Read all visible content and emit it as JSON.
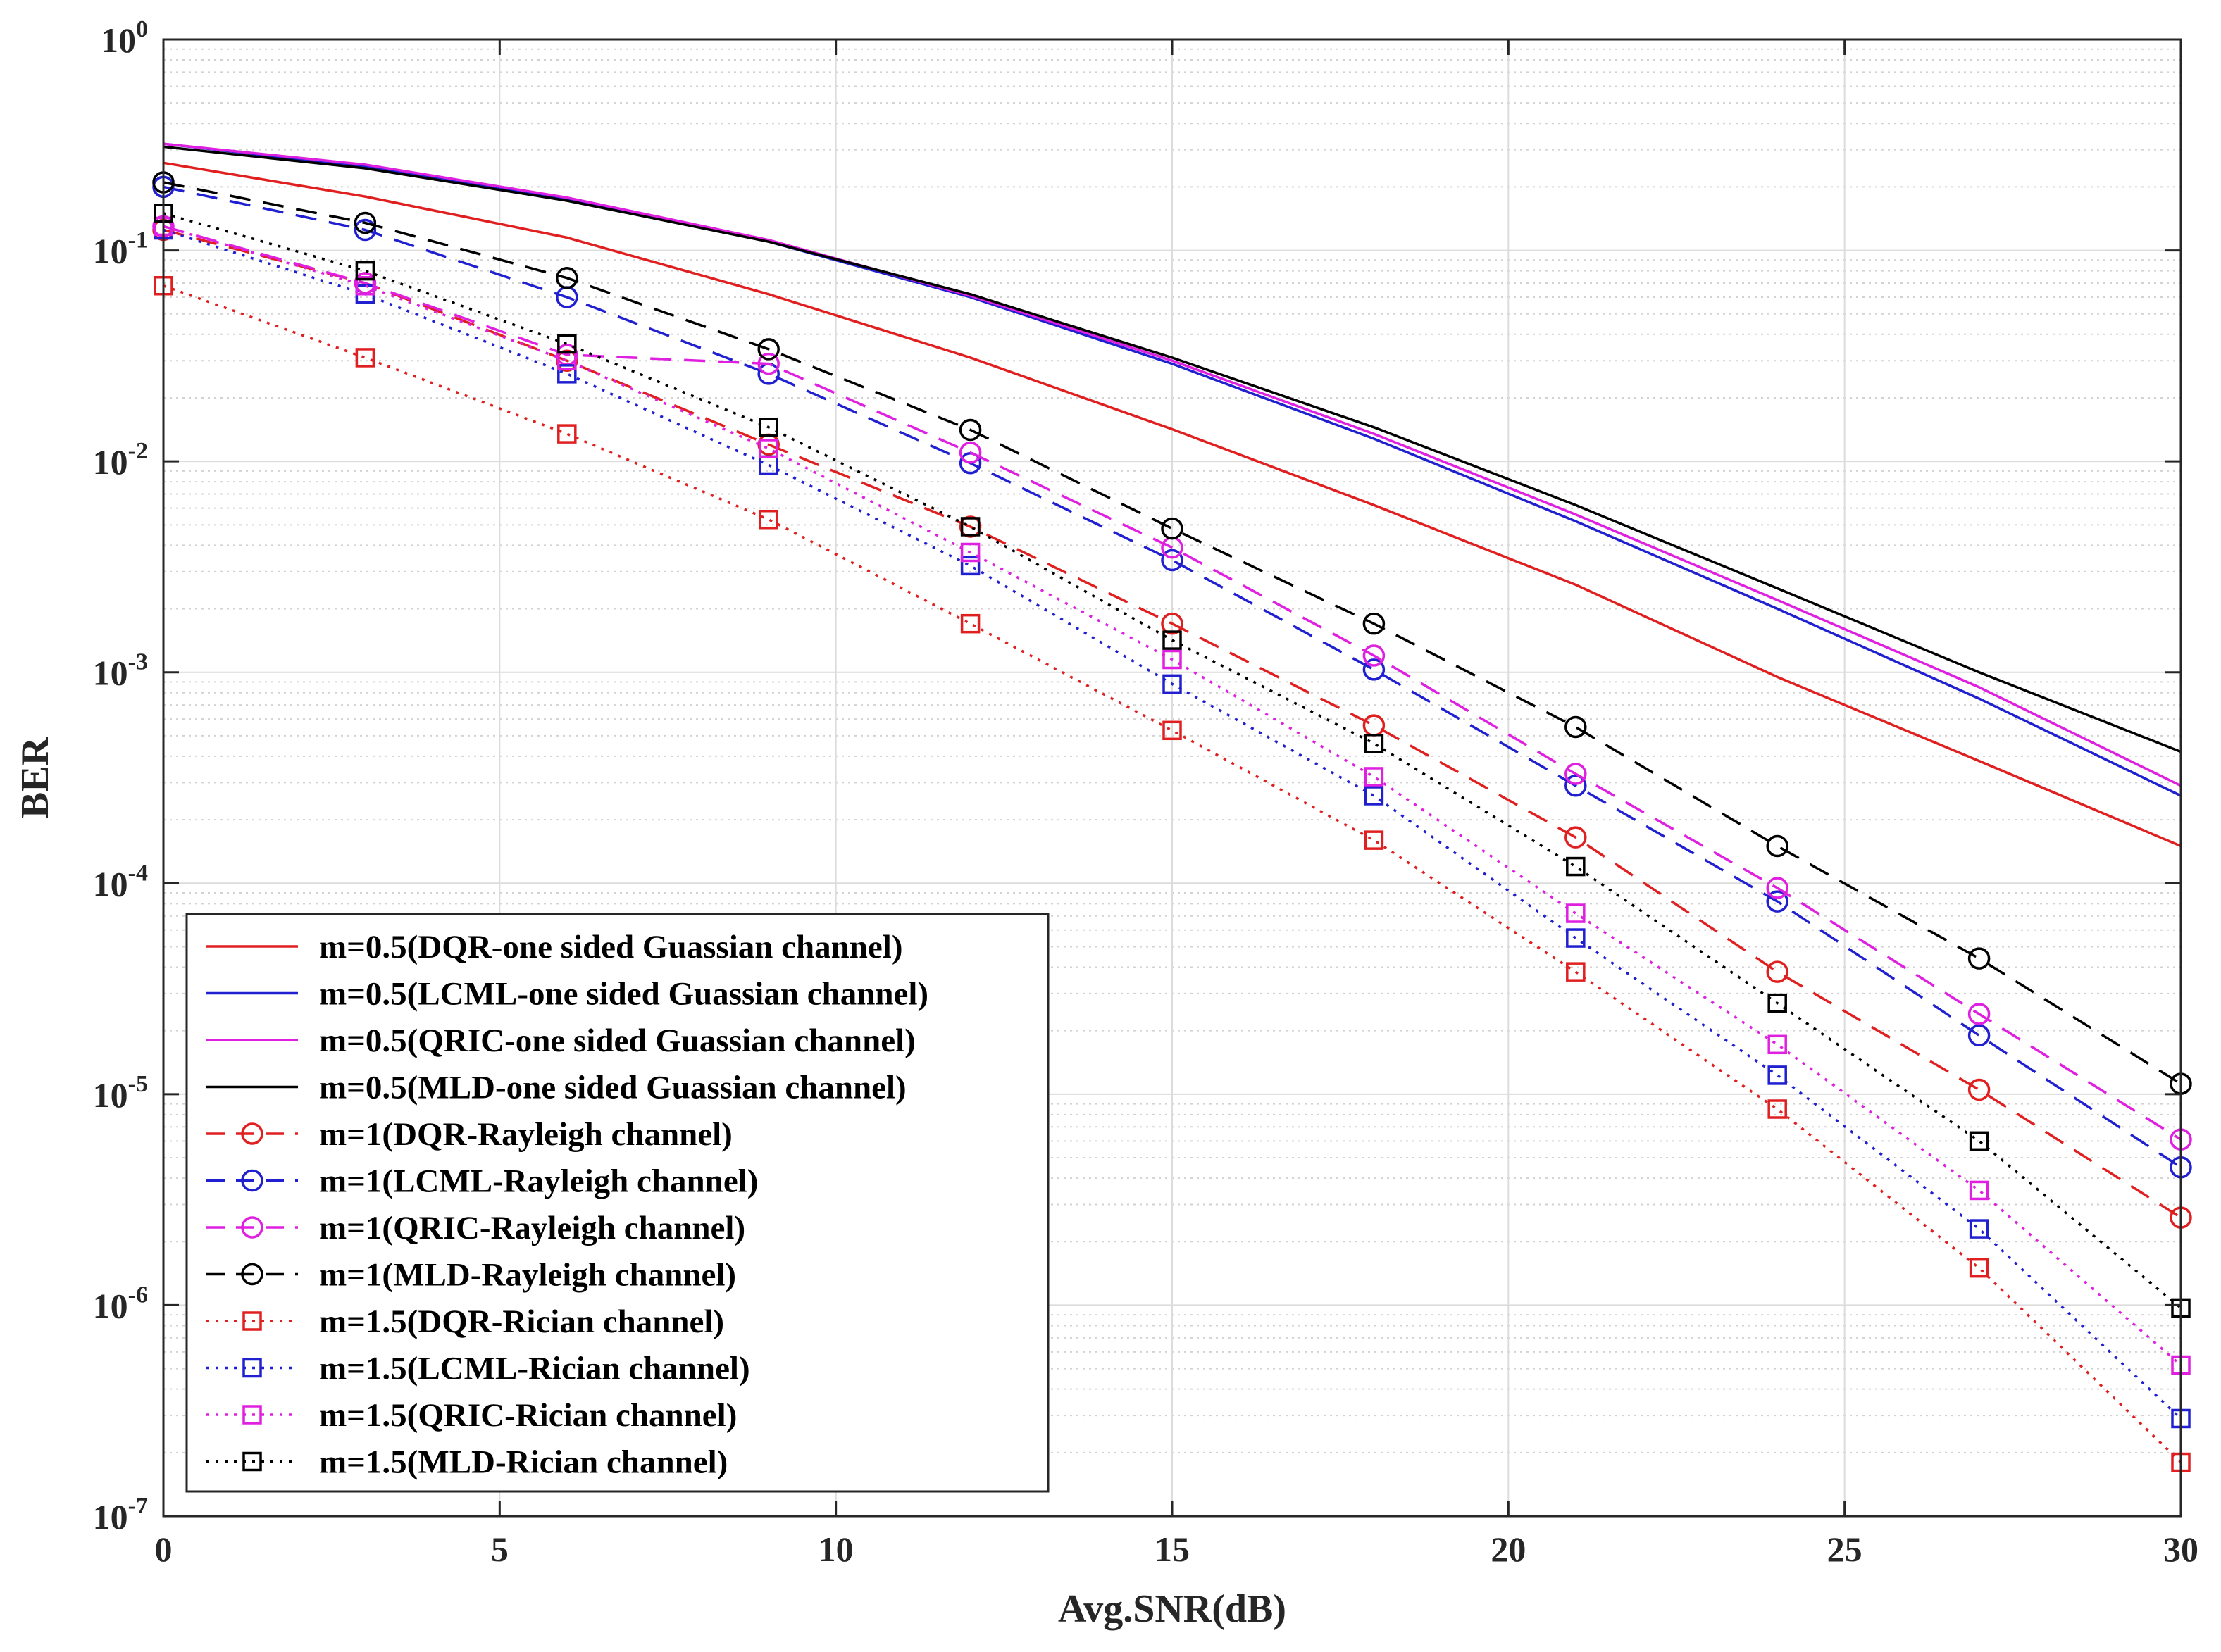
{
  "chart_data": {
    "type": "line",
    "title": "",
    "xlabel": "Avg.SNR(dB)",
    "ylabel": "BER",
    "xlim": [
      0,
      30
    ],
    "ylim": [
      1e-07,
      1
    ],
    "yscale": "log",
    "grid": true,
    "legend_position": "bottom-left",
    "xticks": [
      0,
      5,
      10,
      15,
      20,
      25,
      30
    ],
    "xtick_labels": [
      "0",
      "5",
      "10",
      "15",
      "20",
      "25",
      "30"
    ],
    "yticks": [
      0,
      -1,
      -2,
      -3,
      -4,
      -5,
      -6,
      -7
    ],
    "ytick_labels": [
      {
        "base": "10",
        "exp": "0"
      },
      {
        "base": "10",
        "exp": "-1"
      },
      {
        "base": "10",
        "exp": "-2"
      },
      {
        "base": "10",
        "exp": "-3"
      },
      {
        "base": "10",
        "exp": "-4"
      },
      {
        "base": "10",
        "exp": "-5"
      },
      {
        "base": "10",
        "exp": "-6"
      },
      {
        "base": "10",
        "exp": "-7"
      }
    ],
    "x": [
      0,
      3,
      6,
      9,
      12,
      15,
      18,
      21,
      24,
      27,
      30
    ],
    "series": [
      {
        "name": "m=0.5(DQR-one sided Guassian channel)",
        "color": "#e02020",
        "dash": "solid",
        "marker": "none",
        "values": [
          0.26,
          0.18,
          0.115,
          0.062,
          0.031,
          0.0142,
          0.0062,
          0.0026,
          0.00095,
          0.00038,
          0.00015
        ]
      },
      {
        "name": "m=0.5(LCML-one sided Guassian channel)",
        "color": "#2020d0",
        "dash": "solid",
        "marker": "none",
        "values": [
          0.32,
          0.25,
          0.175,
          0.11,
          0.06,
          0.029,
          0.0128,
          0.0052,
          0.002,
          0.00075,
          0.00026
        ]
      },
      {
        "name": "m=0.5(QRIC-one sided Guassian channel)",
        "color": "#e020e0",
        "dash": "solid",
        "marker": "none",
        "values": [
          0.32,
          0.255,
          0.178,
          0.112,
          0.061,
          0.03,
          0.0135,
          0.0056,
          0.0022,
          0.00085,
          0.00029
        ]
      },
      {
        "name": "m=0.5(MLD-one sided Guassian channel)",
        "color": "#000000",
        "dash": "solid",
        "marker": "none",
        "values": [
          0.31,
          0.245,
          0.172,
          0.11,
          0.062,
          0.031,
          0.0145,
          0.0062,
          0.0025,
          0.001,
          0.00042
        ]
      },
      {
        "name": "m=1(DQR-Rayleigh channel)",
        "color": "#e02020",
        "dash": "dashed",
        "marker": "circle",
        "values": [
          0.125,
          0.07,
          0.03,
          0.012,
          0.0049,
          0.0017,
          0.00056,
          0.000165,
          3.8e-05,
          1.05e-05,
          2.6e-06
        ]
      },
      {
        "name": "m=1(LCML-Rayleigh channel)",
        "color": "#2020d0",
        "dash": "dashed",
        "marker": "circle",
        "values": [
          0.2,
          0.125,
          0.06,
          0.026,
          0.0098,
          0.0034,
          0.00103,
          0.00029,
          8.2e-05,
          1.9e-05,
          4.5e-06
        ]
      },
      {
        "name": "m=1(QRIC-Rayleigh channel)",
        "color": "#e020e0",
        "dash": "dashed",
        "marker": "circle",
        "values": [
          0.13,
          0.07,
          0.032,
          0.029,
          0.011,
          0.0039,
          0.0012,
          0.00033,
          9.5e-05,
          2.4e-05,
          6.1e-06
        ]
      },
      {
        "name": "m=1(MLD-Rayleigh channel)",
        "color": "#000000",
        "dash": "dashed",
        "marker": "circle",
        "values": [
          0.21,
          0.135,
          0.074,
          0.034,
          0.0141,
          0.0048,
          0.0017,
          0.00055,
          0.00015,
          4.4e-05,
          1.12e-05
        ]
      },
      {
        "name": "m=1.5(DQR-Rician channel)",
        "color": "#e02020",
        "dash": "dotted",
        "marker": "square",
        "values": [
          0.068,
          0.031,
          0.0135,
          0.0053,
          0.0017,
          0.00053,
          0.00016,
          3.8e-05,
          8.5e-06,
          1.5e-06,
          1.8e-07
        ]
      },
      {
        "name": "m=1.5(LCML-Rician channel)",
        "color": "#2020d0",
        "dash": "dotted",
        "marker": "square",
        "values": [
          0.125,
          0.062,
          0.026,
          0.0096,
          0.0032,
          0.00088,
          0.00026,
          5.5e-05,
          1.23e-05,
          2.3e-06,
          2.9e-07
        ]
      },
      {
        "name": "m=1.5(QRIC-Rician channel)",
        "color": "#e020e0",
        "dash": "dotted",
        "marker": "square",
        "values": [
          0.13,
          0.068,
          0.03,
          0.0115,
          0.0037,
          0.00115,
          0.00032,
          7.2e-05,
          1.72e-05,
          3.5e-06,
          5.2e-07
        ]
      },
      {
        "name": "m=1.5(MLD-Rician channel)",
        "color": "#000000",
        "dash": "dotted",
        "marker": "square",
        "values": [
          0.15,
          0.08,
          0.036,
          0.0145,
          0.0049,
          0.00142,
          0.00046,
          0.00012,
          2.7e-05,
          6e-06,
          9.7e-07
        ]
      }
    ]
  }
}
